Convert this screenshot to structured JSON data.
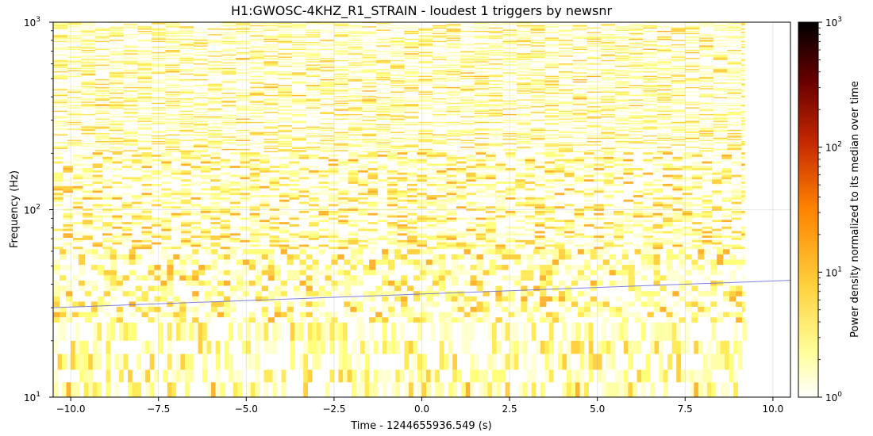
{
  "chart_data": {
    "type": "heatmap",
    "title": "H1:GWOSC-4KHZ_R1_STRAIN - loudest 1 triggers by newsnr",
    "xlabel": "Time - 1244655936.549 (s)",
    "ylabel": "Frequency (Hz)",
    "xlim": [
      -10.5,
      10.5
    ],
    "ylim": [
      10,
      1000
    ],
    "y_scale": "log",
    "grid": true,
    "x_ticks": [
      -10.0,
      -7.5,
      -5.0,
      -2.5,
      0.0,
      2.5,
      5.0,
      7.5,
      10.0
    ],
    "x_tick_labels": [
      "−10.0",
      "−7.5",
      "−5.0",
      "−2.5",
      "0.0",
      "2.5",
      "5.0",
      "7.5",
      "10.0"
    ],
    "y_ticks": [
      10,
      100,
      1000
    ],
    "y_tick_labels": [
      {
        "base": "10",
        "exp": "1"
      },
      {
        "base": "10",
        "exp": "2"
      },
      {
        "base": "10",
        "exp": "3"
      }
    ],
    "data_time_range": [
      -10.5,
      9.2
    ],
    "colormap": "afmhot_r",
    "colorbar": {
      "label": "Power density normalized to its median over time",
      "scale": "log",
      "range": [
        1,
        1000
      ],
      "ticks": [
        1,
        10,
        100,
        1000
      ],
      "tick_labels": [
        {
          "base": "10",
          "exp": "0"
        },
        {
          "base": "10",
          "exp": "1"
        },
        {
          "base": "10",
          "exp": "2"
        },
        {
          "base": "10",
          "exp": "3"
        }
      ]
    },
    "trigger_track": {
      "color": "#6a6ad8",
      "t": [
        -10.5,
        10.5
      ],
      "f": [
        30,
        42
      ]
    }
  }
}
